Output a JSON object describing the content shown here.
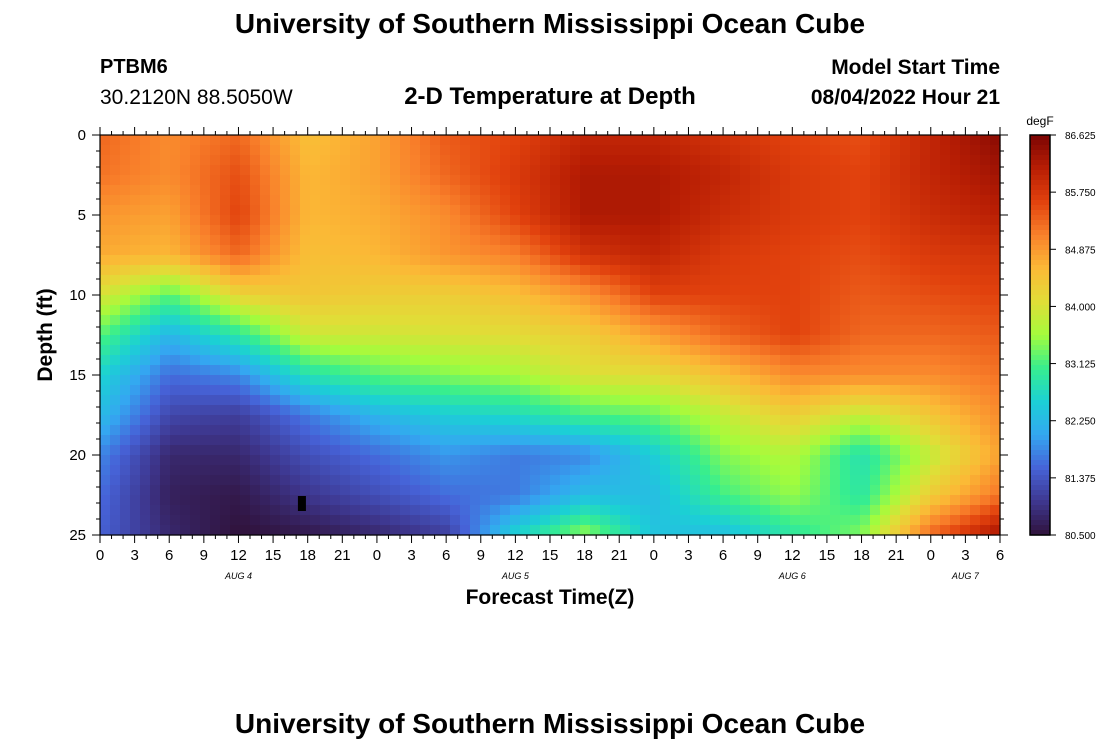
{
  "header": {
    "title": "University of Southern Mississippi Ocean Cube",
    "station_id": "PTBM6",
    "station_coords": "30.2120N  88.5050W",
    "plot_title": "2-D Temperature at Depth",
    "start_label": "Model Start Time",
    "start_value": "08/04/2022 Hour 21"
  },
  "footer": {
    "title": "University of Southern Mississippi Ocean Cube"
  },
  "chart_data": {
    "type": "heatmap",
    "title": "2-D Temperature at Depth",
    "xlabel": "Forecast Time(Z)",
    "ylabel": "Depth (ft)",
    "x_unit": "hours since Aug 4 00Z",
    "xlim": [
      0,
      78
    ],
    "ylim": [
      0,
      25
    ],
    "y_ticks": [
      0,
      5,
      10,
      15,
      20,
      25
    ],
    "x_tick_values": [
      0,
      3,
      6,
      9,
      12,
      15,
      18,
      21,
      24,
      27,
      30,
      33,
      36,
      39,
      42,
      45,
      48,
      51,
      54,
      57,
      60,
      63,
      66,
      69,
      72,
      75,
      78
    ],
    "x_tick_labels": [
      "0",
      "3",
      "6",
      "9",
      "12",
      "15",
      "18",
      "21",
      "0",
      "3",
      "6",
      "9",
      "12",
      "15",
      "18",
      "21",
      "0",
      "3",
      "6",
      "9",
      "12",
      "15",
      "18",
      "21",
      "0",
      "3",
      "6"
    ],
    "day_labels": [
      {
        "text": "AUG 4",
        "hour": 12
      },
      {
        "text": "AUG 5",
        "hour": 36
      },
      {
        "text": "AUG 6",
        "hour": 60
      },
      {
        "text": "AUG 7",
        "hour": 75
      }
    ],
    "colorbar": {
      "unit": "degF",
      "min": 80.5,
      "max": 86.625,
      "tick_values": [
        86.625,
        85.75,
        84.875,
        84.0,
        83.125,
        82.25,
        81.375,
        80.5
      ],
      "tick_labels": [
        "86.625",
        "85.750",
        "84.875",
        "84.000",
        "83.125",
        "82.250",
        "81.375",
        "80.500"
      ],
      "colors": [
        "#30123b",
        "#3e378f",
        "#4662d7",
        "#34a7f1",
        "#1bd0d5",
        "#37ee8f",
        "#a4fc3c",
        "#e1dd37",
        "#fbb936",
        "#f9812b",
        "#e1410d",
        "#b81e04",
        "#7a0403"
      ]
    },
    "grid_hours": [
      0,
      6,
      12,
      18,
      24,
      30,
      36,
      42,
      48,
      54,
      60,
      66,
      72,
      78
    ],
    "grid_depths": [
      0,
      2.5,
      5,
      7.5,
      10,
      12.5,
      15,
      17.5,
      20,
      22.5,
      25
    ],
    "temperature": [
      [
        85.3,
        85.0,
        85.3,
        84.5,
        84.8,
        85.4,
        85.6,
        86.0,
        86.0,
        85.8,
        85.6,
        85.5,
        86.0,
        86.5
      ],
      [
        85.2,
        85.0,
        85.5,
        84.6,
        84.8,
        85.3,
        85.7,
        86.2,
        86.2,
        86.0,
        85.7,
        85.6,
        86.0,
        86.3
      ],
      [
        84.9,
        84.8,
        85.6,
        84.6,
        84.7,
        85.0,
        85.6,
        86.2,
        86.2,
        85.9,
        85.7,
        85.6,
        85.9,
        86.1
      ],
      [
        84.7,
        84.6,
        85.3,
        84.5,
        84.6,
        84.9,
        85.1,
        85.8,
        86.0,
        85.7,
        85.6,
        85.5,
        85.7,
        85.8
      ],
      [
        84.0,
        83.2,
        84.2,
        84.4,
        84.3,
        84.3,
        84.5,
        84.9,
        85.6,
        85.6,
        85.6,
        85.4,
        85.5,
        85.6
      ],
      [
        83.2,
        82.2,
        82.9,
        83.9,
        83.9,
        84.0,
        84.1,
        84.3,
        84.8,
        85.3,
        85.6,
        85.3,
        85.3,
        85.4
      ],
      [
        82.6,
        81.6,
        81.8,
        82.8,
        83.2,
        83.4,
        83.6,
        84.0,
        84.1,
        84.5,
        85.0,
        85.0,
        85.0,
        85.2
      ],
      [
        82.3,
        81.2,
        81.1,
        81.7,
        82.2,
        82.5,
        82.7,
        83.1,
        83.3,
        83.8,
        84.3,
        83.8,
        84.4,
        85.0
      ],
      [
        81.8,
        80.8,
        80.8,
        81.3,
        81.6,
        81.9,
        81.7,
        81.8,
        82.5,
        83.4,
        83.7,
        82.8,
        83.8,
        84.8
      ],
      [
        81.6,
        80.7,
        80.6,
        81.0,
        81.3,
        81.6,
        81.7,
        82.3,
        82.3,
        83.1,
        83.5,
        82.9,
        84.3,
        85.2
      ],
      [
        81.5,
        80.8,
        80.5,
        80.6,
        80.8,
        81.1,
        82.6,
        83.5,
        82.4,
        82.3,
        82.9,
        83.4,
        85.3,
        86.3
      ]
    ],
    "annotations": [
      {
        "type": "marker",
        "hour": 17.5,
        "depth": 23,
        "color": "#000000"
      }
    ]
  }
}
